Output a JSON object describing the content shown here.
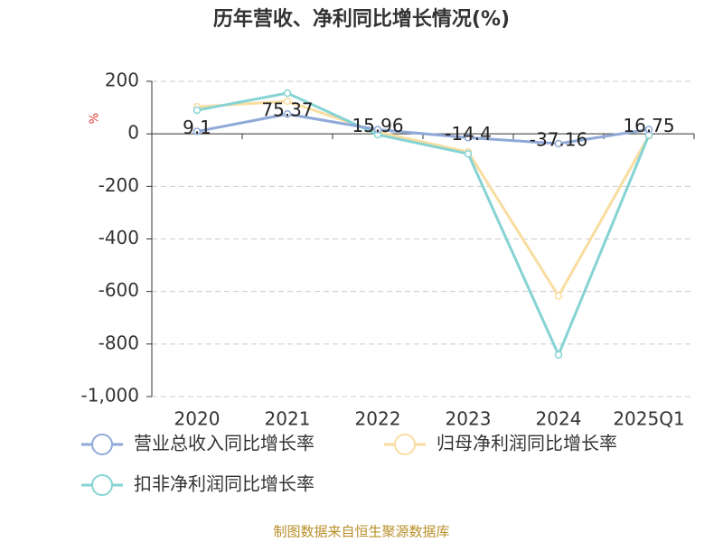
{
  "chart_data": {
    "type": "line",
    "title": "历年营收、净利同比增长情况(%)",
    "y_label": "%",
    "source": "制图数据来自恒生聚源数据库",
    "categories": [
      "2020",
      "2021",
      "2022",
      "2023",
      "2024",
      "2025Q1"
    ],
    "series": [
      {
        "name": "营业总收入同比增长率",
        "color": "#8fa9d8",
        "values": [
          9.1,
          75.37,
          15.96,
          -14.4,
          -37.16,
          16.75
        ],
        "labels": true
      },
      {
        "name": "归母净利润同比增长率",
        "color": "#f9dda0",
        "values": [
          103,
          124,
          7,
          -69,
          -617,
          -7
        ]
      },
      {
        "name": "扣非净利润同比增长率",
        "color": "#86d3d3",
        "values": [
          90,
          155,
          -3,
          -76,
          -841,
          -5
        ]
      }
    ],
    "ylim": [
      -1000,
      200
    ],
    "yticks": [
      {
        "value": -1000,
        "label": "-1,000"
      },
      -800,
      -600,
      -400,
      -200,
      0,
      200
    ],
    "grid": true
  }
}
